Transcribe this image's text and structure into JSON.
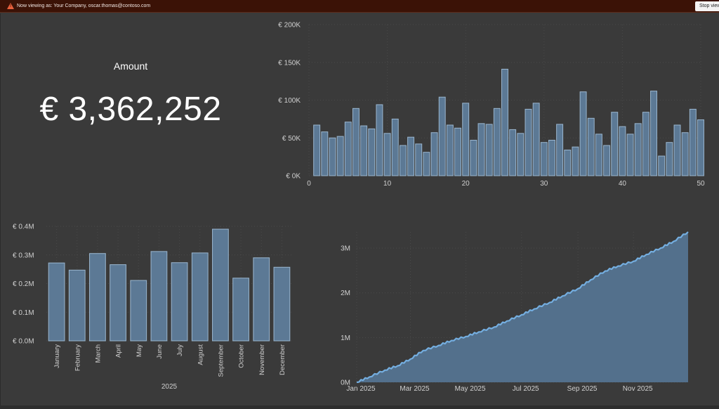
{
  "banner": {
    "warning_icon": "warning-triangle-icon",
    "message": "Now viewing as: Your Company, oscar.thomas@contoso.com",
    "stop_label": "Stop view"
  },
  "card": {
    "title": "Amount",
    "value": "€ 3,362,252"
  },
  "colors": {
    "bar_fill": "#5c7995",
    "bar_stroke": "#9ab6cf",
    "line": "#74aee0",
    "area": "#53708c",
    "axis_text": "#d0d0d0",
    "grid": "#4a4a4a",
    "banner": "#3b1206"
  },
  "chart_data": [
    {
      "type": "bar",
      "title": "",
      "xlabel": "",
      "ylabel": "",
      "x": [
        1,
        2,
        3,
        4,
        5,
        6,
        7,
        8,
        9,
        10,
        11,
        12,
        13,
        14,
        15,
        16,
        17,
        18,
        19,
        20,
        21,
        22,
        23,
        24,
        25,
        26,
        27,
        28,
        29,
        30,
        31,
        32,
        33,
        34,
        35,
        36,
        37,
        38,
        39,
        40,
        41,
        42,
        43,
        44,
        45,
        46,
        47,
        48,
        49,
        50
      ],
      "values": [
        67000,
        58000,
        50000,
        52000,
        71000,
        89000,
        66000,
        62000,
        94000,
        56000,
        75000,
        40000,
        51000,
        42000,
        31000,
        57000,
        104000,
        67000,
        63000,
        96000,
        47000,
        69000,
        68000,
        89000,
        141000,
        61000,
        56000,
        88000,
        96000,
        44000,
        47000,
        68000,
        34000,
        38000,
        111000,
        76000,
        55000,
        40000,
        84000,
        65000,
        55000,
        69000,
        84000,
        112000,
        26000,
        44000,
        67000,
        57000,
        88000,
        74000
      ],
      "xlim": [
        0,
        50
      ],
      "x_ticks": [
        "0",
        "10",
        "20",
        "30",
        "40",
        "50"
      ],
      "ylim": [
        0,
        200000
      ],
      "y_ticks": [
        "€ 0K",
        "€ 50K",
        "€ 100K",
        "€ 150K",
        "€ 200K"
      ],
      "grid": true
    },
    {
      "type": "bar",
      "title": "",
      "xlabel": "2025",
      "ylabel": "",
      "categories": [
        "January",
        "February",
        "March",
        "April",
        "May",
        "June",
        "July",
        "August",
        "September",
        "October",
        "November",
        "December"
      ],
      "values": [
        272000,
        247000,
        305000,
        266000,
        211000,
        312000,
        273000,
        307000,
        390000,
        219000,
        290000,
        257000
      ],
      "ylim": [
        0,
        400000
      ],
      "y_ticks": [
        "€ 0.0M",
        "€ 0.1M",
        "€ 0.2M",
        "€ 0.3M",
        "€ 0.4M"
      ],
      "grid": true
    },
    {
      "type": "area",
      "title": "",
      "xlabel": "",
      "ylabel": "",
      "x": [
        "2025-01-01",
        "2025-01-15",
        "2025-02-01",
        "2025-02-15",
        "2025-03-01",
        "2025-03-15",
        "2025-04-01",
        "2025-04-15",
        "2025-05-01",
        "2025-05-15",
        "2025-06-01",
        "2025-06-15",
        "2025-07-01",
        "2025-07-15",
        "2025-08-01",
        "2025-08-15",
        "2025-09-01",
        "2025-09-15",
        "2025-10-01",
        "2025-10-15",
        "2025-11-01",
        "2025-11-15",
        "2025-12-01",
        "2025-12-15",
        "2025-12-31"
      ],
      "values": [
        0,
        120000,
        272000,
        370000,
        519000,
        710000,
        824000,
        933000,
        1024000,
        1125000,
        1235000,
        1370000,
        1508000,
        1640000,
        1785000,
        1930000,
        2092000,
        2290000,
        2488000,
        2598000,
        2706000,
        2856000,
        3003000,
        3150000,
        3362252
      ],
      "x_ticks": [
        "Jan 2025",
        "Mar 2025",
        "May 2025",
        "Jul 2025",
        "Sep 2025",
        "Nov 2025"
      ],
      "ylim": [
        0,
        3362252
      ],
      "y_ticks": [
        "0M",
        "1M",
        "2M",
        "3M"
      ],
      "grid": true
    }
  ]
}
